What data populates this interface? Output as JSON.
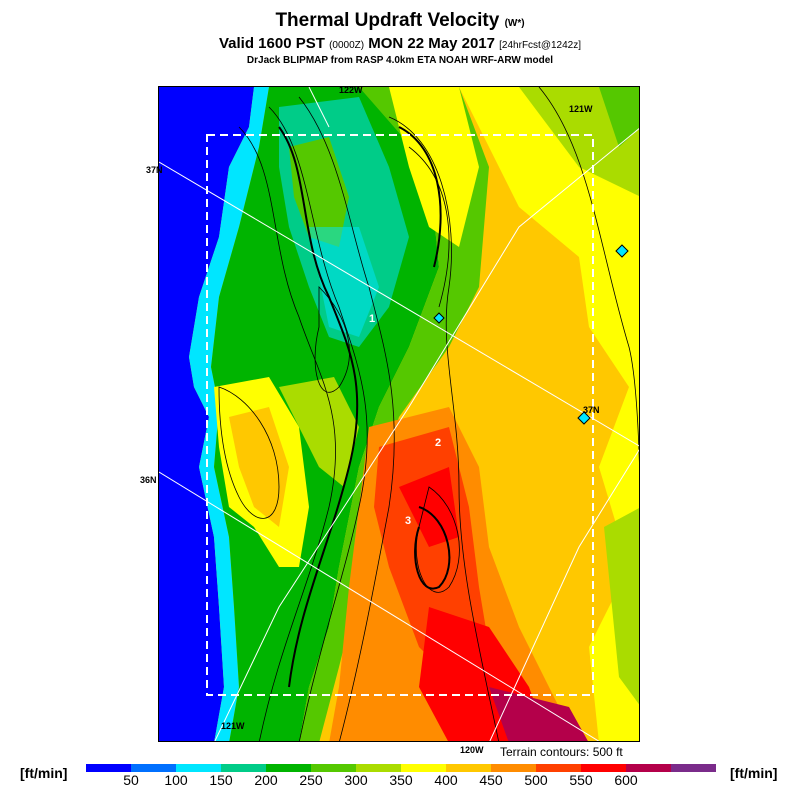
{
  "header": {
    "title": "Thermal Updraft Velocity",
    "title_unit": "(W*)",
    "valid_prefix": "Valid 1600 PST",
    "valid_zulu": "(0000Z)",
    "valid_date": "MON 22 May 2017",
    "forecast": "[24hrFcst@1242z]",
    "subtitle": "DrJack BLIPMAP from RASP 4.0km ETA NOAH WRF-ARW model"
  },
  "map": {
    "lon_labels": [
      "122W",
      "121W",
      "121W",
      "120W"
    ],
    "lat_labels": [
      "37N",
      "37N",
      "36N"
    ],
    "region_labels": [
      "1",
      "2",
      "3"
    ],
    "terrain_note": "Terrain contours: 500 ft"
  },
  "legend": {
    "unit": "[ft/min]",
    "ticks": [
      "50",
      "100",
      "150",
      "200",
      "250",
      "300",
      "350",
      "400",
      "450",
      "500",
      "550",
      "600"
    ],
    "colors": [
      "#0000ff",
      "#0070ff",
      "#00e6ff",
      "#00cc88",
      "#00b400",
      "#55c800",
      "#aadc00",
      "#ffff00",
      "#ffc800",
      "#ff8c00",
      "#ff4000",
      "#ff0000",
      "#b4004a",
      "#7a2b8a"
    ]
  }
}
